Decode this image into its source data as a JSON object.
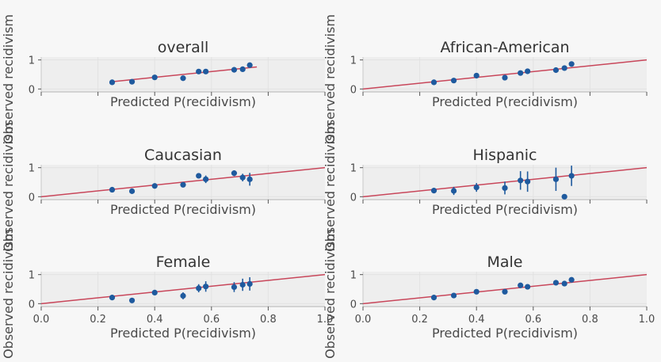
{
  "figure": {
    "xlabel": "Predicted P(recidivism)",
    "ylabel": "Observed recidivism",
    "x_ticks": [
      "0.0",
      "0.2",
      "0.4",
      "0.6",
      "0.8",
      "1.0"
    ],
    "y_ticks": [
      "0",
      "1"
    ],
    "colors": {
      "background": "#f7f7f7",
      "axes_face": "#eeeeee",
      "grid": "#e2e2e2",
      "points": "#1f5a9e",
      "diagonal": "#c8465a",
      "text": "#4a4a4a"
    }
  },
  "chart_data": [
    {
      "type": "scatter",
      "title": "overall",
      "xlabel": "Predicted P(recidivism)",
      "ylabel": "Observed recidivism",
      "xlim": [
        0.0,
        1.0
      ],
      "ylim": [
        -0.1,
        1.1
      ],
      "x_tick_labels_shown": false,
      "reference_line": {
        "x": [
          0.25,
          0.76
        ],
        "y": [
          0.25,
          0.76
        ]
      },
      "points": [
        {
          "x": 0.25,
          "y": 0.23,
          "err": 0
        },
        {
          "x": 0.32,
          "y": 0.25,
          "err": 0
        },
        {
          "x": 0.4,
          "y": 0.4,
          "err": 0
        },
        {
          "x": 0.5,
          "y": 0.37,
          "err": 0
        },
        {
          "x": 0.555,
          "y": 0.6,
          "err": 0
        },
        {
          "x": 0.58,
          "y": 0.6,
          "err": 0
        },
        {
          "x": 0.68,
          "y": 0.66,
          "err": 0
        },
        {
          "x": 0.71,
          "y": 0.68,
          "err": 0
        },
        {
          "x": 0.735,
          "y": 0.82,
          "err": 0
        }
      ]
    },
    {
      "type": "scatter",
      "title": "African-American",
      "xlabel": "Predicted P(recidivism)",
      "ylabel": "Observed recidivism",
      "xlim": [
        0.0,
        1.0
      ],
      "ylim": [
        -0.1,
        1.1
      ],
      "x_tick_labels_shown": false,
      "reference_line": {
        "x": [
          0.0,
          1.0
        ],
        "y": [
          0.0,
          1.0
        ]
      },
      "points": [
        {
          "x": 0.25,
          "y": 0.23,
          "err": 0
        },
        {
          "x": 0.32,
          "y": 0.29,
          "err": 0
        },
        {
          "x": 0.4,
          "y": 0.46,
          "err": 0
        },
        {
          "x": 0.5,
          "y": 0.39,
          "err": 0
        },
        {
          "x": 0.555,
          "y": 0.55,
          "err": 0
        },
        {
          "x": 0.58,
          "y": 0.61,
          "err": 0
        },
        {
          "x": 0.68,
          "y": 0.65,
          "err": 0
        },
        {
          "x": 0.71,
          "y": 0.72,
          "err": 0
        },
        {
          "x": 0.735,
          "y": 0.86,
          "err": 0
        }
      ]
    },
    {
      "type": "scatter",
      "title": "Caucasian",
      "xlabel": "Predicted P(recidivism)",
      "ylabel": "Observed recidivism",
      "xlim": [
        0.0,
        1.0
      ],
      "ylim": [
        -0.1,
        1.1
      ],
      "x_tick_labels_shown": false,
      "reference_line": {
        "x": [
          0.0,
          1.0
        ],
        "y": [
          0.0,
          1.0
        ]
      },
      "points": [
        {
          "x": 0.25,
          "y": 0.24,
          "err": 0.04
        },
        {
          "x": 0.32,
          "y": 0.19,
          "err": 0.04
        },
        {
          "x": 0.4,
          "y": 0.37,
          "err": 0.05
        },
        {
          "x": 0.5,
          "y": 0.41,
          "err": 0.08
        },
        {
          "x": 0.555,
          "y": 0.72,
          "err": 0.07
        },
        {
          "x": 0.58,
          "y": 0.6,
          "err": 0.13
        },
        {
          "x": 0.68,
          "y": 0.81,
          "err": 0.1
        },
        {
          "x": 0.71,
          "y": 0.66,
          "err": 0.13
        },
        {
          "x": 0.735,
          "y": 0.6,
          "err": 0.22
        }
      ]
    },
    {
      "type": "scatter",
      "title": "Hispanic",
      "xlabel": "Predicted P(recidivism)",
      "ylabel": "Observed recidivism",
      "xlim": [
        0.0,
        1.0
      ],
      "ylim": [
        -0.1,
        1.1
      ],
      "x_tick_labels_shown": false,
      "reference_line": {
        "x": [
          0.0,
          1.0
        ],
        "y": [
          0.0,
          1.0
        ]
      },
      "points": [
        {
          "x": 0.25,
          "y": 0.21,
          "err": 0.08
        },
        {
          "x": 0.32,
          "y": 0.2,
          "err": 0.14
        },
        {
          "x": 0.4,
          "y": 0.32,
          "err": 0.15
        },
        {
          "x": 0.5,
          "y": 0.3,
          "err": 0.22
        },
        {
          "x": 0.555,
          "y": 0.56,
          "err": 0.32
        },
        {
          "x": 0.58,
          "y": 0.52,
          "err": 0.35
        },
        {
          "x": 0.68,
          "y": 0.6,
          "err": 0.4
        },
        {
          "x": 0.71,
          "y": 0.0,
          "err": 0
        },
        {
          "x": 0.735,
          "y": 0.72,
          "err": 0.35
        }
      ]
    },
    {
      "type": "scatter",
      "title": "Female",
      "xlabel": "Predicted P(recidivism)",
      "ylabel": "Observed recidivism",
      "xlim": [
        0.0,
        1.0
      ],
      "ylim": [
        -0.1,
        1.1
      ],
      "x_tick_labels_shown": true,
      "reference_line": {
        "x": [
          0.0,
          1.0
        ],
        "y": [
          0.0,
          1.0
        ]
      },
      "points": [
        {
          "x": 0.25,
          "y": 0.21,
          "err": 0.04
        },
        {
          "x": 0.32,
          "y": 0.11,
          "err": 0.04
        },
        {
          "x": 0.4,
          "y": 0.38,
          "err": 0.06
        },
        {
          "x": 0.5,
          "y": 0.27,
          "err": 0.12
        },
        {
          "x": 0.555,
          "y": 0.53,
          "err": 0.14
        },
        {
          "x": 0.58,
          "y": 0.59,
          "err": 0.18
        },
        {
          "x": 0.68,
          "y": 0.57,
          "err": 0.17
        },
        {
          "x": 0.71,
          "y": 0.65,
          "err": 0.21
        },
        {
          "x": 0.735,
          "y": 0.68,
          "err": 0.23
        }
      ]
    },
    {
      "type": "scatter",
      "title": "Male",
      "xlabel": "Predicted P(recidivism)",
      "ylabel": "Observed recidivism",
      "xlim": [
        0.0,
        1.0
      ],
      "ylim": [
        -0.1,
        1.1
      ],
      "x_tick_labels_shown": true,
      "reference_line": {
        "x": [
          0.0,
          1.0
        ],
        "y": [
          0.0,
          1.0
        ]
      },
      "points": [
        {
          "x": 0.25,
          "y": 0.21,
          "err": 0
        },
        {
          "x": 0.32,
          "y": 0.28,
          "err": 0
        },
        {
          "x": 0.4,
          "y": 0.41,
          "err": 0
        },
        {
          "x": 0.5,
          "y": 0.41,
          "err": 0
        },
        {
          "x": 0.555,
          "y": 0.63,
          "err": 0
        },
        {
          "x": 0.58,
          "y": 0.58,
          "err": 0
        },
        {
          "x": 0.68,
          "y": 0.72,
          "err": 0
        },
        {
          "x": 0.71,
          "y": 0.69,
          "err": 0
        },
        {
          "x": 0.735,
          "y": 0.82,
          "err": 0
        }
      ]
    }
  ]
}
